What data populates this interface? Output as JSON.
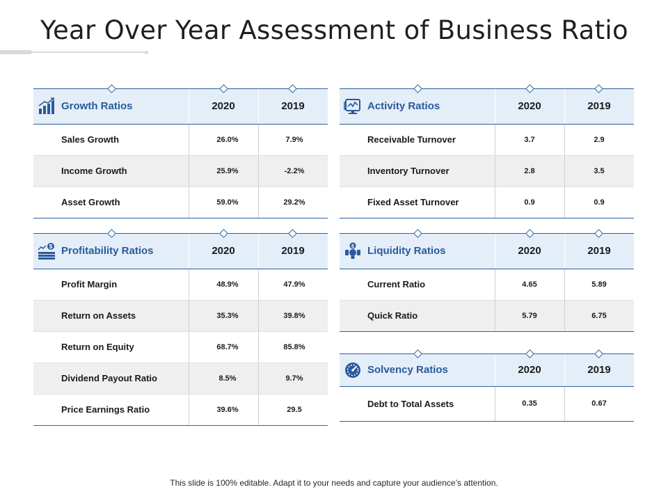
{
  "title": "Year Over Year Assessment of Business Ratio",
  "footer": "This slide is 100% editable. Adapt it to your needs and capture your audience’s attention.",
  "colors": {
    "accent": "#2e5f9e",
    "header_bg": "#e4eef9",
    "alt_row": "#efefef"
  },
  "tables": {
    "growth": {
      "icon": "bar-chart-growth-icon",
      "title": "Growth Ratios",
      "col1": "2020",
      "col2": "2019",
      "rows": [
        {
          "label": "Sales Growth",
          "v2020": "26.0%",
          "v2019": "7.9%"
        },
        {
          "label": "Income Growth",
          "v2020": "25.9%",
          "v2019": "-2.2%"
        },
        {
          "label": "Asset Growth",
          "v2020": "59.0%",
          "v2019": "29.2%"
        }
      ]
    },
    "profitability": {
      "icon": "money-stack-icon",
      "title": "Profitability  Ratios",
      "col1": "2020",
      "col2": "2019",
      "rows": [
        {
          "label": "Profit Margin",
          "v2020": "48.9%",
          "v2019": "47.9%"
        },
        {
          "label": "Return on Assets",
          "v2020": "35.3%",
          "v2019": "39.8%"
        },
        {
          "label": "Return on Equity",
          "v2020": "68.7%",
          "v2019": "85.8%"
        },
        {
          "label": "Dividend Payout Ratio",
          "v2020": "8.5%",
          "v2019": "9.7%"
        },
        {
          "label": "Price Earnings Ratio",
          "v2020": "39.6%",
          "v2019": "29.5"
        }
      ]
    },
    "activity": {
      "icon": "monitor-activity-icon",
      "title": "Activity  Ratios",
      "col1": "2020",
      "col2": "2019",
      "rows": [
        {
          "label": "Receivable Turnover",
          "v2020": "3.7",
          "v2019": "2.9"
        },
        {
          "label": "Inventory Turnover",
          "v2020": "2.8",
          "v2019": "3.5"
        },
        {
          "label": "Fixed Asset Turnover",
          "v2020": "0.9",
          "v2019": "0.9"
        }
      ]
    },
    "liquidity": {
      "icon": "money-bulb-icon",
      "title": "Liquidity Ratios",
      "col1": "2020",
      "col2": "2019",
      "rows": [
        {
          "label": "Current Ratio",
          "v2020": "4.65",
          "v2019": "5.89"
        },
        {
          "label": "Quick Ratio",
          "v2020": "5.79",
          "v2019": "6.75"
        }
      ]
    },
    "solvency": {
      "icon": "speedometer-icon",
      "title": "Solvency Ratios",
      "col1": "2020",
      "col2": "2019",
      "rows": [
        {
          "label": "Debt to Total Assets",
          "v2020": "0.35",
          "v2019": "0.67"
        }
      ]
    }
  }
}
